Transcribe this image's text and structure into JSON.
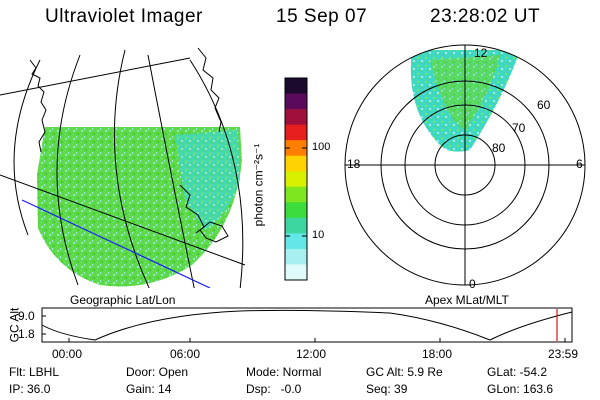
{
  "header": {
    "instrument": "Ultraviolet Imager",
    "date": "15 Sep 07",
    "time": "23:28:02 UT"
  },
  "left_panel": {
    "caption": "Geographic Lat/Lon"
  },
  "right_panel": {
    "caption": "Apex MLat/MLT",
    "mlt_labels": {
      "top": "12",
      "left": "18",
      "right": "6",
      "bottom": "0"
    },
    "lat_labels": [
      "60",
      "70",
      "80"
    ]
  },
  "colorbar": {
    "unit_label": "photon cm⁻²s⁻¹",
    "ticks": [
      "100",
      "10"
    ],
    "colors": [
      "#1c0a2e",
      "#5a0a5a",
      "#a0103c",
      "#e61e1e",
      "#ff7e00",
      "#ffd200",
      "#d6f000",
      "#7ee61e",
      "#3cdc3c",
      "#3ed6a0",
      "#64e6e6",
      "#a8f0f0",
      "#e0fafa"
    ]
  },
  "alt_plot": {
    "ylabel": "GC Alt",
    "yticks": [
      "9.0",
      "1.8"
    ],
    "xticks": [
      "00:00",
      "06:00",
      "12:00",
      "18:00",
      "23:59"
    ],
    "marker_color": "#e01010"
  },
  "info": {
    "flt": "Flt: LBHL",
    "ip": "IP: 36.0",
    "door": "Door: Open",
    "gain": "Gain: 14",
    "mode": "Mode: Normal",
    "dsp": "Dsp:   -0.0",
    "gcalt": "GC Alt: 5.9 Re",
    "seq": "Seq: 39",
    "glat": "GLat: -54.2",
    "glon": "GLon: 163.6"
  }
}
